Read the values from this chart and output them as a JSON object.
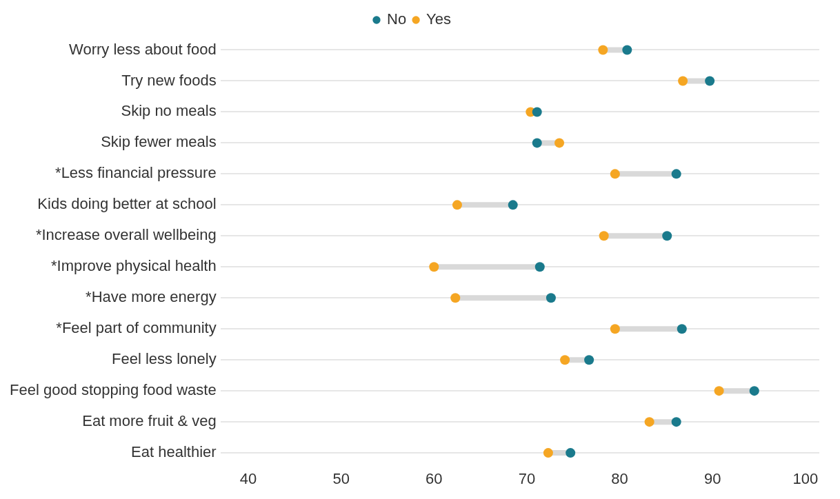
{
  "chart_data": {
    "type": "scatter",
    "orientation": "horizontal",
    "categories": [
      "Worry less about food",
      "Try new foods",
      "Skip no meals",
      "Skip fewer meals",
      "*Less financial pressure",
      "Kids doing better at school",
      "*Increase overall wellbeing",
      "*Improve physical health",
      "*Have more energy",
      "*Feel part of community",
      "Feel less lonely",
      "Feel good stopping food waste",
      "Eat more fruit & veg",
      "Eat healthier"
    ],
    "series": [
      {
        "name": "No",
        "color": "#1a7a8c",
        "values": [
          80.8,
          89.7,
          71.1,
          71.1,
          86.1,
          68.5,
          85.1,
          71.4,
          72.6,
          86.7,
          76.7,
          94.5,
          86.1,
          74.7
        ]
      },
      {
        "name": "Yes",
        "color": "#f5a623",
        "values": [
          78.2,
          86.8,
          70.4,
          73.5,
          79.5,
          62.5,
          78.3,
          60.0,
          62.3,
          79.5,
          74.1,
          90.7,
          83.2,
          72.3
        ]
      }
    ],
    "xlim": [
      37,
      101.5
    ],
    "xticks": [
      40,
      50,
      60,
      70,
      80,
      90,
      100
    ],
    "grid": "y",
    "legend": "top",
    "marker": "circle"
  }
}
